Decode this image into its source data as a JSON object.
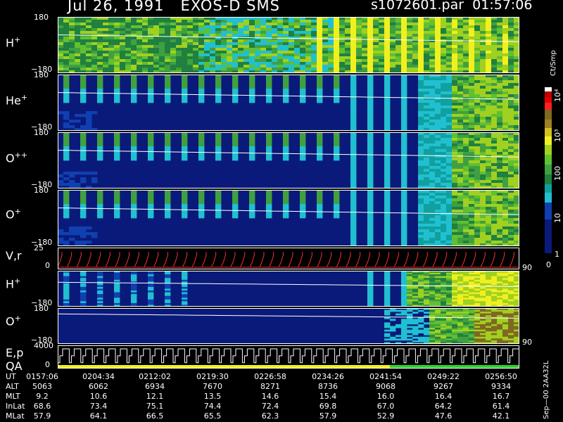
{
  "header": {
    "title_left": "Jul 26, 1991   EXOS-D SMS",
    "title_right": "s1072601.par  01:57:06"
  },
  "chart_data": {
    "type": "heatmap",
    "panels": [
      {
        "label": "H",
        "sup": "+",
        "ytop": "180",
        "ybot": "−180",
        "style": "h1"
      },
      {
        "label": "He",
        "sup": "+",
        "ytop": "180",
        "ybot": "−180",
        "style": "he"
      },
      {
        "label": "O",
        "sup": "++",
        "ytop": "180",
        "ybot": "−180",
        "style": "opp"
      },
      {
        "label": "O",
        "sup": "+",
        "ytop": "180",
        "ybot": "−180",
        "style": "o1"
      },
      {
        "label": "V,r",
        "sup": "",
        "ytop": "25",
        "ybot": "0",
        "right": "90",
        "style": "vr"
      },
      {
        "label": "H",
        "sup": "+",
        "ytop": "",
        "ybot": "−180",
        "style": "h2"
      },
      {
        "label": "O",
        "sup": "+",
        "ytop": "180",
        "ybot": "−180",
        "right": "90",
        "style": "o2"
      },
      {
        "label": "E,p",
        "sublabel": "QA",
        "ytop": "4000",
        "ybot": "0",
        "style": "ep"
      }
    ],
    "colorbar": {
      "title": "Ct/Smp",
      "ticks": [
        "10⁴",
        "10³",
        "100",
        "10",
        "1",
        "0"
      ]
    },
    "side_note": "Sep—00 2AA32L",
    "table": {
      "rows": [
        {
          "label": "UT",
          "values": [
            "0157:06",
            "0204:34",
            "0212:02",
            "0219:30",
            "0226:58",
            "0234:26",
            "0241:54",
            "0249:22",
            "0256:50"
          ]
        },
        {
          "label": "ALT",
          "values": [
            "5063",
            "6062",
            "6934",
            "7670",
            "8271",
            "8736",
            "9068",
            "9267",
            "9334"
          ]
        },
        {
          "label": "MLT",
          "values": [
            "9.2",
            "10.6",
            "12.1",
            "13.5",
            "14.6",
            "15.4",
            "16.0",
            "16.4",
            "16.7"
          ]
        },
        {
          "label": "InLat",
          "values": [
            "68.6",
            "73.4",
            "75.1",
            "74.4",
            "72.4",
            "69.8",
            "67.0",
            "64.2",
            "61.4"
          ]
        },
        {
          "label": "MLat",
          "values": [
            "57.9",
            "64.1",
            "66.5",
            "65.5",
            "62.3",
            "57.9",
            "52.9",
            "47.6",
            "42.1"
          ]
        }
      ]
    }
  }
}
